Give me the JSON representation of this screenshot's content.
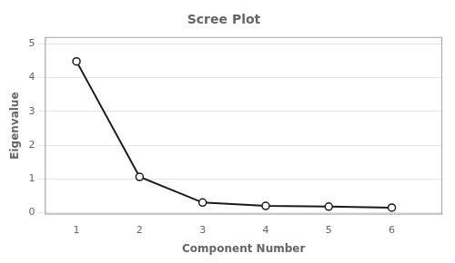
{
  "chart_data": {
    "type": "line",
    "title": "Scree Plot",
    "xlabel": "Component Number",
    "ylabel": "Eigenvalue",
    "x": [
      1,
      2,
      3,
      4,
      5,
      6
    ],
    "values": [
      4.48,
      1.06,
      0.3,
      0.2,
      0.18,
      0.15
    ],
    "color": "#1a1a1a",
    "marker": "circle",
    "xlim": [
      0.5,
      6.8
    ],
    "xticks": [
      1,
      2,
      3,
      4,
      5,
      6
    ],
    "ylim": [
      -0.05,
      5.2
    ],
    "yticks": [
      0,
      1,
      2,
      3,
      4,
      5
    ],
    "grid": "y"
  }
}
